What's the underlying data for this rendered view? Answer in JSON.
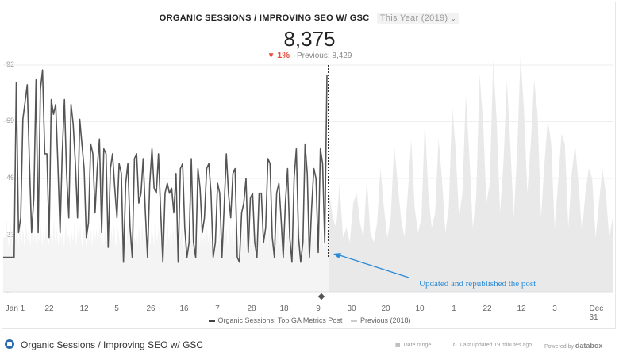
{
  "header": {
    "title": "ORGANIC SESSIONS / IMPROVING SEO W/ GSC",
    "period": "This Year (2019)",
    "value": "8,375",
    "change_pct": "1%",
    "previous": "Previous: 8,429",
    "colors": {
      "down": "#e74c3c",
      "line": "#555555",
      "prev": "#e6e6e6",
      "annotation": "#2a8ad6"
    }
  },
  "annotation": "Updated and republished the post",
  "legend": {
    "current": "Organic Sessions: Top GA Metrics Post",
    "previous": "Previous (2018)"
  },
  "footer": {
    "title": "Organic Sessions / Improving SEO w/ GSC",
    "date_range": "Date range",
    "updated": "Last updated 19 minutes ago",
    "powered": "Powered by",
    "brand": "databox"
  },
  "chart_data": {
    "type": "line",
    "title": "ORGANIC SESSIONS / IMPROVING SEO W/ GSC",
    "xlabel": "",
    "ylabel": "",
    "yticks": [
      "92",
      "69",
      "46",
      "23",
      "0"
    ],
    "ylim": [
      0,
      92
    ],
    "xticks": [
      "Jan 1",
      "22",
      "12",
      "5",
      "26",
      "16",
      "7",
      "28",
      "18",
      "9",
      "30",
      "20",
      "10",
      "1",
      "22",
      "12",
      "3",
      "Dec 31"
    ],
    "grid": true,
    "legend_position": "bottom",
    "series": [
      {
        "name": "Organic Sessions: Top GA Metrics Post",
        "values": [
          14,
          14,
          14,
          14,
          14,
          14,
          85,
          24,
          30,
          70,
          77,
          84,
          52,
          24,
          38,
          86,
          24,
          82,
          90,
          56,
          56,
          22,
          78,
          72,
          76,
          52,
          24,
          56,
          78,
          48,
          30,
          76,
          68,
          52,
          30,
          70,
          60,
          50,
          22,
          28,
          60,
          56,
          32,
          50,
          62,
          24,
          58,
          56,
          18,
          50,
          56,
          42,
          30,
          52,
          48,
          12,
          44,
          52,
          26,
          14,
          54,
          56,
          36,
          40,
          54,
          32,
          14,
          44,
          58,
          42,
          40,
          56,
          32,
          12,
          40,
          44,
          40,
          42,
          32,
          48,
          12,
          50,
          52,
          26,
          14,
          20,
          54,
          20,
          14,
          50,
          42,
          24,
          30,
          50,
          52,
          40,
          14,
          20,
          44,
          40,
          14,
          34,
          56,
          40,
          30,
          48,
          50,
          14,
          12,
          32,
          36,
          46,
          16,
          38,
          40,
          20,
          14,
          40,
          40,
          20,
          26,
          54,
          52,
          22,
          14,
          40,
          44,
          30,
          14,
          36,
          50,
          22,
          12,
          46,
          58,
          22,
          12,
          20,
          60,
          48,
          14,
          34,
          50,
          46,
          16,
          58,
          52,
          20,
          88
        ]
      },
      {
        "name": "Previous (2018)",
        "values": [
          22,
          22,
          22,
          24,
          30,
          24,
          20,
          18,
          24,
          28,
          22,
          18,
          30,
          24,
          20,
          22,
          28,
          24,
          18,
          24,
          30,
          22,
          20,
          26,
          24,
          18,
          22,
          28,
          24,
          20,
          26,
          22,
          18,
          24,
          28,
          22,
          20,
          24,
          22,
          18,
          26,
          24,
          20,
          22,
          28,
          24,
          18,
          22,
          26,
          20,
          24,
          28,
          22,
          18,
          20,
          26,
          24,
          22,
          18,
          24,
          30,
          22,
          20,
          26,
          24,
          18,
          22,
          28,
          24,
          20,
          26,
          22,
          18,
          24,
          28,
          22,
          20,
          24,
          22,
          18,
          26,
          24,
          20,
          22,
          28,
          24,
          18,
          22,
          26,
          20,
          24,
          28,
          22,
          18,
          20,
          26,
          24,
          22,
          18,
          24,
          30,
          22,
          20,
          26,
          24,
          18,
          22,
          28,
          24,
          20,
          26,
          22,
          18,
          24,
          28,
          22,
          20,
          24,
          22,
          18,
          26,
          24,
          20,
          22,
          28,
          24,
          18,
          22,
          26,
          20,
          24,
          28,
          22,
          18,
          20,
          26,
          24,
          22,
          18,
          24,
          30,
          22,
          20,
          26,
          24,
          18,
          22,
          28,
          24,
          20,
          26,
          22,
          18,
          24,
          28,
          22,
          20,
          24,
          22,
          18,
          26,
          24,
          20,
          22,
          28,
          24,
          18,
          22,
          26,
          20,
          24,
          28,
          22,
          18,
          20,
          26,
          24,
          22,
          18,
          24,
          30,
          22,
          20,
          26,
          24,
          18,
          22,
          28,
          24,
          20,
          26,
          22,
          18,
          24,
          28,
          22,
          20,
          24,
          22,
          18,
          26,
          24,
          20,
          22,
          28,
          24,
          18,
          22,
          26,
          20,
          24,
          28,
          22,
          18,
          20,
          26,
          24,
          22,
          18,
          24,
          30,
          22,
          20,
          26,
          24,
          18,
          22,
          28,
          24,
          20,
          26,
          22,
          18,
          24,
          28,
          22,
          20,
          24,
          22,
          18,
          26,
          24,
          20,
          22,
          28,
          24,
          18,
          22,
          26,
          20,
          24,
          28,
          22,
          18,
          20,
          26,
          24,
          22,
          18,
          24,
          30,
          22,
          20,
          26,
          24,
          18,
          22,
          28,
          24,
          20,
          26,
          22,
          18,
          24,
          28,
          22,
          20,
          24,
          22,
          18,
          26,
          24,
          20,
          22,
          28,
          24,
          18,
          22,
          26,
          20,
          24,
          28,
          22,
          18,
          20,
          26,
          24,
          22,
          18,
          24,
          30,
          22,
          20,
          26,
          24,
          18,
          22,
          28,
          24,
          20,
          26,
          22,
          18,
          24,
          28,
          22,
          20,
          24,
          22,
          18,
          26,
          24,
          20,
          22,
          28,
          24,
          18,
          22,
          26,
          20,
          24,
          28,
          22,
          18,
          20,
          26,
          24,
          22,
          18,
          24,
          30,
          22,
          20,
          26,
          24,
          18,
          22,
          28,
          24,
          20,
          26,
          22,
          18,
          24,
          28,
          22,
          20,
          24,
          22,
          18,
          26,
          24,
          20,
          22,
          28,
          24,
          18,
          22,
          26,
          20,
          24,
          28,
          22,
          18,
          20,
          26,
          24,
          22,
          18,
          24,
          30,
          22,
          20,
          26,
          24,
          18
        ]
      },
      {
        "name": "",
        "values": [
          40,
          30,
          26,
          44,
          22,
          26,
          20,
          36,
          40,
          28,
          22,
          46,
          24,
          20,
          28,
          50,
          34,
          22,
          30,
          60,
          44,
          30,
          22,
          40,
          62,
          34,
          24,
          30,
          70,
          40,
          26,
          32,
          62,
          46,
          24,
          34,
          76,
          58,
          30,
          40,
          80,
          56,
          26,
          38,
          88,
          70,
          36,
          44,
          94,
          70,
          32,
          52,
          86,
          60,
          30,
          56,
          96,
          74,
          40,
          60,
          86,
          72,
          30,
          52,
          70,
          60,
          26,
          44,
          64,
          60,
          26,
          48,
          60,
          44,
          24,
          40,
          50,
          46,
          22,
          36,
          50,
          40,
          22,
          30
        ]
      }
    ]
  }
}
